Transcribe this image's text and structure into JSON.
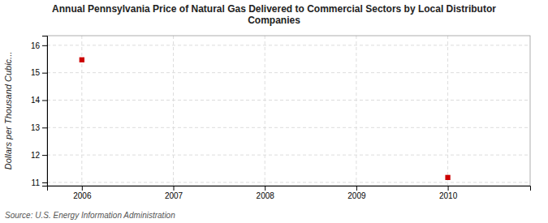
{
  "chart_data": {
    "type": "scatter",
    "title": "Annual Pennsylvania Price of Natural Gas Delivered to Commercial Sectors by Local Distributor\nCompanies",
    "y_label": "Dollars per Thousand Cubic...",
    "annotations": [
      "Source: U.S. Energy Information Administration"
    ],
    "x": [
      2006,
      2010
    ],
    "values": [
      15.47,
      11.18
    ],
    "color": "#cc0000",
    "marker": "square",
    "xlim": [
      2005.62,
      2010.9
    ],
    "ylim": [
      10.88,
      16.35
    ],
    "xticks": [
      2006,
      2007,
      2008,
      2009,
      2010
    ],
    "yticks": [
      11,
      12,
      13,
      14,
      15,
      16
    ],
    "grid": true
  }
}
